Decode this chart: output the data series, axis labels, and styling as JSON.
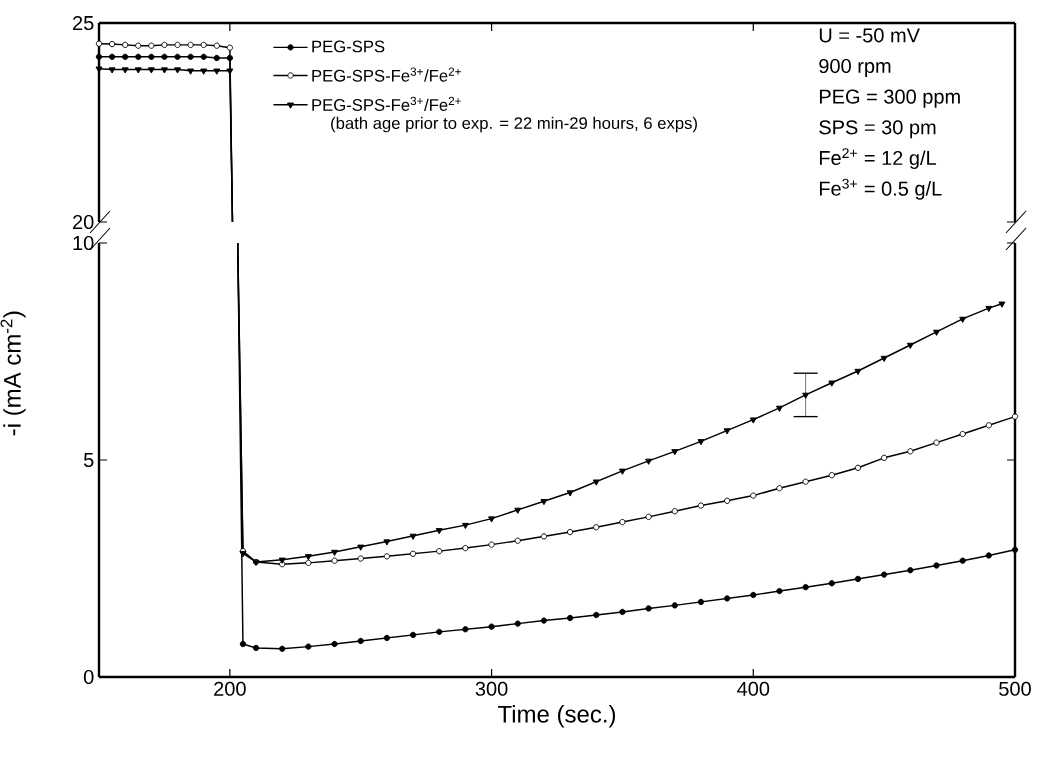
{
  "chart_data": [
    {
      "type": "line",
      "xlim": [
        150,
        500
      ],
      "xticks": [
        {
          "value": 200,
          "label": null
        },
        {
          "value": 300,
          "label": null
        },
        {
          "value": 400,
          "label": null
        }
      ],
      "tick_labels": "y",
      "ylim": [
        20,
        25
      ],
      "yticks": [
        20,
        25
      ],
      "legend": "top",
      "annotations": [
        "(bath age prior to exp. = 22 min-29 hours, 6 exps)",
        "U = -50 mV",
        "900 rpm",
        "PEG = 300 ppm",
        "SPS = 30 pm",
        "Fe$^{2+}$ = 12 g/L",
        "Fe$^{3+}$ = 0.5 g/L"
      ],
      "series": [
        {
          "name": "PEG-SPS",
          "color": "#000000",
          "marker": "circle",
          "x": [
            150,
            155,
            160,
            165,
            170,
            175,
            180,
            185,
            190,
            195,
            200,
            201
          ],
          "values": [
            24.15,
            24.15,
            24.15,
            24.15,
            24.15,
            24.15,
            24.15,
            24.15,
            24.15,
            24.12,
            24.12,
            20
          ]
        },
        {
          "name": "PEG-SPS-Fe$^{3+}$/Fe$^{2+}$",
          "color": "#000000",
          "marker": "circle",
          "x": [
            150,
            155,
            160,
            165,
            170,
            175,
            180,
            185,
            190,
            195,
            200,
            201
          ],
          "values": [
            24.48,
            24.47,
            24.45,
            24.43,
            24.43,
            24.45,
            24.45,
            24.45,
            24.45,
            24.43,
            24.38,
            20
          ]
        },
        {
          "name": "PEG-SPS-Fe$^{3+}$/Fe$^{2+}$",
          "color": "#000000",
          "marker": "triangle",
          "x": [
            150,
            155,
            160,
            165,
            170,
            175,
            180,
            185,
            190,
            195,
            200,
            201
          ],
          "values": [
            23.85,
            23.83,
            23.83,
            23.83,
            23.83,
            23.83,
            23.83,
            23.8,
            23.8,
            23.8,
            23.8,
            20
          ]
        }
      ]
    },
    {
      "type": "line",
      "xlim": [
        150,
        500
      ],
      "xticks": [
        200,
        300,
        400,
        500
      ],
      "ylim": [
        0,
        10
      ],
      "yticks": [
        0,
        5,
        10
      ],
      "xlabel": "Time (sec.)",
      "ylabel": "-i (mA cm$^{-2}$)",
      "series": [
        {
          "color": "#000000",
          "marker": "circle",
          "x": [
            203,
            205,
            210,
            220,
            230,
            240,
            250,
            260,
            270,
            280,
            290,
            300,
            310,
            320,
            330,
            340,
            350,
            360,
            370,
            380,
            390,
            400,
            410,
            420,
            430,
            440,
            450,
            460,
            470,
            480,
            490,
            500
          ],
          "values": [
            10,
            0.76,
            0.67,
            0.65,
            0.7,
            0.76,
            0.83,
            0.9,
            0.97,
            1.04,
            1.1,
            1.16,
            1.23,
            1.3,
            1.36,
            1.43,
            1.5,
            1.58,
            1.65,
            1.73,
            1.81,
            1.89,
            1.98,
            2.07,
            2.16,
            2.26,
            2.36,
            2.46,
            2.57,
            2.68,
            2.8,
            2.93
          ]
        },
        {
          "color": "#000000",
          "marker": "circle",
          "x": [
            203,
            205,
            210,
            220,
            230,
            240,
            250,
            260,
            270,
            280,
            290,
            300,
            310,
            320,
            330,
            340,
            350,
            360,
            370,
            380,
            390,
            400,
            410,
            420,
            430,
            440,
            450,
            460,
            470,
            480,
            490,
            500
          ],
          "values": [
            10,
            2.9,
            2.65,
            2.6,
            2.63,
            2.68,
            2.73,
            2.78,
            2.84,
            2.9,
            2.97,
            3.05,
            3.14,
            3.24,
            3.34,
            3.45,
            3.57,
            3.69,
            3.82,
            3.95,
            4.06,
            4.18,
            4.35,
            4.5,
            4.65,
            4.82,
            5.05,
            5.2,
            5.4,
            5.6,
            5.8,
            6.0
          ]
        },
        {
          "color": "#000000",
          "marker": "triangle",
          "x": [
            203,
            205,
            210,
            220,
            230,
            240,
            250,
            260,
            270,
            280,
            290,
            300,
            310,
            320,
            330,
            340,
            350,
            360,
            370,
            380,
            390,
            400,
            410,
            420,
            430,
            440,
            450,
            460,
            470,
            480,
            490,
            495
          ],
          "values": [
            10,
            2.85,
            2.65,
            2.7,
            2.78,
            2.88,
            3.0,
            3.12,
            3.25,
            3.38,
            3.5,
            3.65,
            3.85,
            4.05,
            4.25,
            4.5,
            4.75,
            4.98,
            5.2,
            5.43,
            5.68,
            5.93,
            6.2,
            6.5,
            6.78,
            7.05,
            7.35,
            7.65,
            7.95,
            8.25,
            8.5,
            8.6
          ],
          "errors": [
            null,
            null,
            null,
            null,
            null,
            null,
            null,
            null,
            null,
            null,
            null,
            null,
            null,
            null,
            null,
            null,
            null,
            null,
            null,
            null,
            null,
            null,
            null,
            0.5,
            null,
            null,
            null,
            null,
            null,
            null,
            null,
            null
          ]
        }
      ]
    }
  ]
}
